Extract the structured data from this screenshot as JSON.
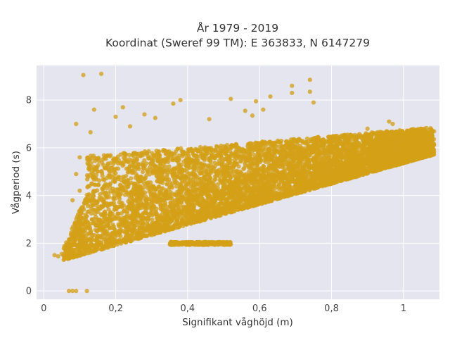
{
  "chart_data": {
    "type": "scatter",
    "title_lines": [
      "År 1979 - 2019",
      "Koordinat (Sweref 99 TM): E 363833, N 6147279"
    ],
    "xlabel": "Signifikant våghöjd (m)",
    "ylabel": "Vågperiod (s)",
    "xlim": [
      -0.02,
      1.1
    ],
    "ylim": [
      -0.35,
      9.45
    ],
    "x_ticks": [
      0,
      0.2,
      0.4,
      0.6,
      0.8,
      1
    ],
    "x_tick_labels": [
      "0",
      "0,2",
      "0,4",
      "0,6",
      "0,8",
      "1"
    ],
    "y_ticks": [
      0,
      2,
      4,
      6,
      8
    ],
    "y_tick_labels": [
      "0",
      "2",
      "4",
      "6",
      "8"
    ],
    "grid": true,
    "colors": {
      "marker": "#D4A017",
      "plot_background": "#E5E5EF",
      "grid": "#FFFFFF",
      "text": "#333333"
    },
    "marker_opacity": 0.78,
    "data_description": "About 30000 hourly observations; dense cloud bounded below by roughly T = 1.1 + 4.2*Hs and above by roughly T = 5.4 + 1.3*Hs",
    "points": [
      [
        0.11,
        9.05
      ],
      [
        0.16,
        9.1
      ],
      [
        0.74,
        8.85
      ],
      [
        0.74,
        8.35
      ],
      [
        0.69,
        8.6
      ],
      [
        0.69,
        8.3
      ],
      [
        0.38,
        8.0
      ],
      [
        0.52,
        8.05
      ],
      [
        0.63,
        8.15
      ],
      [
        0.59,
        7.95
      ],
      [
        0.75,
        7.9
      ],
      [
        0.36,
        7.85
      ],
      [
        0.14,
        7.6
      ],
      [
        0.31,
        7.25
      ],
      [
        0.09,
        7.0
      ],
      [
        0.13,
        6.65
      ],
      [
        0.1,
        5.6
      ],
      [
        0.09,
        4.9
      ],
      [
        0.1,
        4.2
      ],
      [
        0.08,
        3.8
      ],
      [
        0.08,
        0.0
      ],
      [
        0.09,
        0.0
      ],
      [
        0.12,
        0.0
      ],
      [
        0.07,
        0.0
      ],
      [
        0.03,
        1.5
      ],
      [
        0.04,
        1.45
      ],
      [
        0.05,
        1.55
      ],
      [
        1.04,
        6.7
      ],
      [
        1.06,
        6.45
      ],
      [
        1.08,
        5.7
      ],
      [
        1.07,
        5.9
      ],
      [
        1.02,
        6.75
      ],
      [
        0.97,
        7.0
      ],
      [
        0.9,
        6.8
      ],
      [
        0.96,
        7.1
      ],
      [
        0.58,
        7.35
      ],
      [
        0.46,
        7.2
      ],
      [
        0.28,
        7.4
      ],
      [
        0.22,
        7.7
      ],
      [
        0.2,
        7.3
      ],
      [
        0.24,
        6.9
      ],
      [
        0.56,
        7.55
      ],
      [
        0.61,
        7.6
      ]
    ]
  }
}
